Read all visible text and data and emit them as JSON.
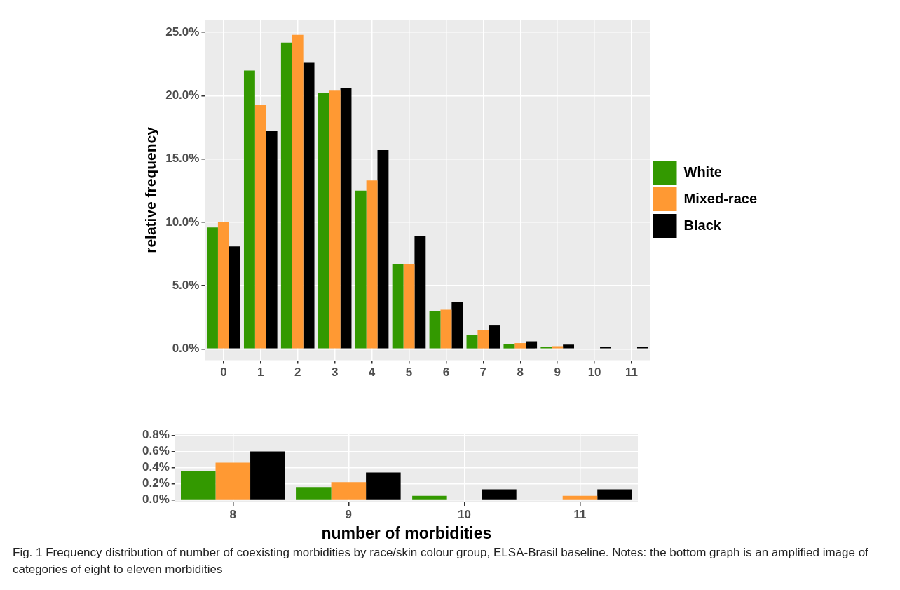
{
  "chart_data": [
    {
      "type": "bar",
      "categories": [
        "0",
        "1",
        "2",
        "3",
        "4",
        "5",
        "6",
        "7",
        "8",
        "9",
        "10",
        "11"
      ],
      "series": [
        {
          "name": "White",
          "color": "#339900",
          "values": [
            9.6,
            22.0,
            24.2,
            20.2,
            12.5,
            6.7,
            3.0,
            1.1,
            0.36,
            0.16,
            null,
            0
          ]
        },
        {
          "name": "Mixed-race",
          "color": "#ff9933",
          "values": [
            10.0,
            19.3,
            24.8,
            20.4,
            13.3,
            6.7,
            3.1,
            1.5,
            0.46,
            0.22,
            0,
            null
          ]
        },
        {
          "name": "Black",
          "color": "#000000",
          "values": [
            8.1,
            17.2,
            22.6,
            20.6,
            15.7,
            8.9,
            3.7,
            1.9,
            0.6,
            0.34,
            0.13,
            0.13
          ]
        }
      ],
      "ylabel": "relative frequency",
      "ylim": [
        -0.9,
        26
      ],
      "yticks": [
        {
          "value": 0,
          "label": "0.0%"
        },
        {
          "value": 5,
          "label": "5.0%"
        },
        {
          "value": 10,
          "label": "10.0%"
        },
        {
          "value": 15,
          "label": "15.0%"
        },
        {
          "value": 20,
          "label": "20.0%"
        },
        {
          "value": 25,
          "label": "25.0%"
        }
      ],
      "grid": true,
      "legend": "right"
    },
    {
      "type": "bar",
      "categories": [
        "8",
        "9",
        "10",
        "11"
      ],
      "series": [
        {
          "color": "#339900",
          "values": [
            0.36,
            0.16,
            0.05,
            0
          ]
        },
        {
          "color": "#ff9933",
          "values": [
            0.46,
            0.22,
            0,
            0.05
          ]
        },
        {
          "color": "#000000",
          "values": [
            0.6,
            0.34,
            0.13,
            0.13
          ]
        }
      ],
      "xlabel": "number of morbidities",
      "ylim": [
        -0.03,
        0.82
      ],
      "yticks": [
        {
          "value": 0,
          "label": "0.0%"
        },
        {
          "value": 0.2,
          "label": "0.2%"
        },
        {
          "value": 0.4,
          "label": "0.4%"
        },
        {
          "value": 0.6,
          "label": "0.6%"
        },
        {
          "value": 0.8,
          "label": "0.8%"
        }
      ],
      "grid": true,
      "annotations": [
        "Fig. 1  Frequency distribution of number of coexisting morbidities by race/skin colour group, ELSA-Brasil baseline. Notes: the bottom graph is an amplified image of categories of eight to eleven morbidities"
      ]
    }
  ]
}
